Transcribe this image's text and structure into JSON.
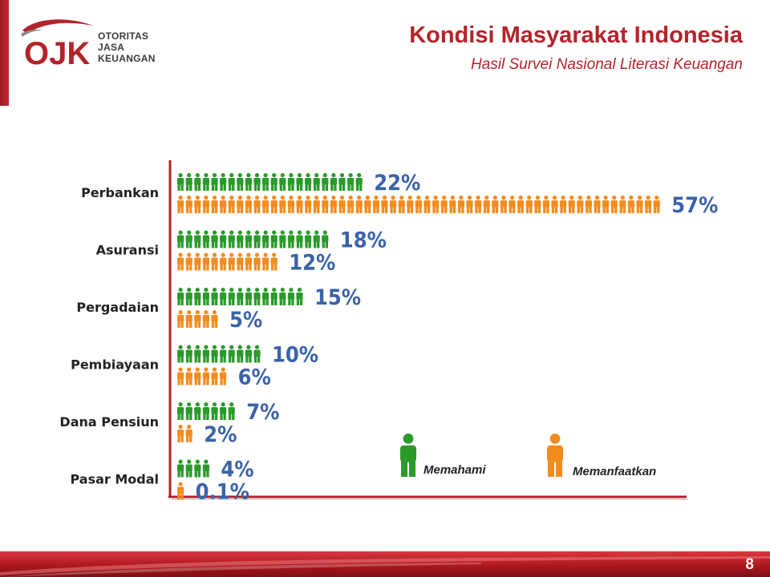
{
  "header": {
    "title": "Kondisi Masyarakat Indonesia",
    "subtitle": "Hasil Survei Nasional Literasi Keuangan"
  },
  "logo": {
    "mark_text": "OJK",
    "lines": [
      "OTORITAS",
      "JASA",
      "KEUANGAN"
    ]
  },
  "colors": {
    "memahami": "#2a9a2a",
    "memanfaatkan": "#f28c1e",
    "label_blue": "#3a63a8",
    "accent_red": "#b4232a"
  },
  "legend": {
    "memahami_label": "Memahami",
    "memanfaatkan_label": "Memanfaatkan",
    "memahami_icon": "green-person-icon",
    "memanfaatkan_icon": "orange-person-icon"
  },
  "chart_data": {
    "type": "bar",
    "categories": [
      "Perbankan",
      "Asuransi",
      "Pergadaian",
      "Pembiayaan",
      "Dana Pensiun",
      "Pasar Modal"
    ],
    "series": [
      {
        "name": "Memahami",
        "values": [
          22,
          18,
          15,
          10,
          7,
          4
        ],
        "labels": [
          "22%",
          "18%",
          "15%",
          "10%",
          "7%",
          "4%"
        ]
      },
      {
        "name": "Memanfaatkan",
        "values": [
          57,
          12,
          5,
          6,
          2,
          0.1
        ],
        "labels": [
          "57%",
          "12%",
          "5%",
          "6%",
          "2%",
          "0.1%"
        ]
      }
    ],
    "title": "",
    "xlabel": "",
    "ylabel": ""
  },
  "footer": {
    "page_number": "8"
  }
}
